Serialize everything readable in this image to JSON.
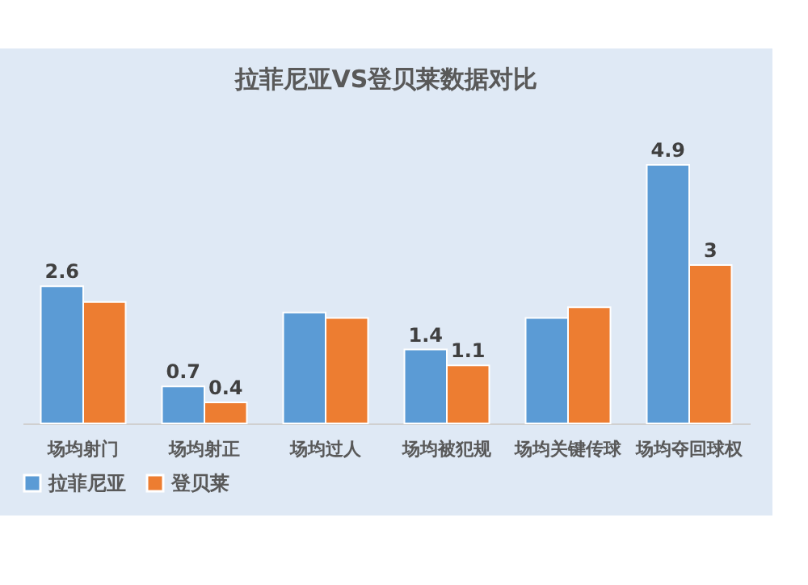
{
  "chart_data": {
    "type": "bar",
    "title": "拉菲尼亚VS登贝莱数据对比",
    "categories": [
      "场均射门",
      "场均射正",
      "场均过人",
      "场均被犯规",
      "场均关键传球",
      "场均夺回球权"
    ],
    "series": [
      {
        "name": "拉菲尼亚",
        "color": "#5b9bd5",
        "values": [
          2.6,
          0.7,
          2.1,
          1.4,
          2.0,
          4.9
        ],
        "value_labels": [
          "2.6",
          "0.7",
          null,
          "1.4",
          null,
          "4.9"
        ]
      },
      {
        "name": "登贝莱",
        "color": "#ed7d31",
        "values": [
          2.3,
          0.4,
          2.0,
          1.1,
          2.2,
          3
        ],
        "value_labels": [
          null,
          "0.4",
          null,
          "1.1",
          null,
          "3"
        ]
      }
    ],
    "legend": "bottom"
  }
}
